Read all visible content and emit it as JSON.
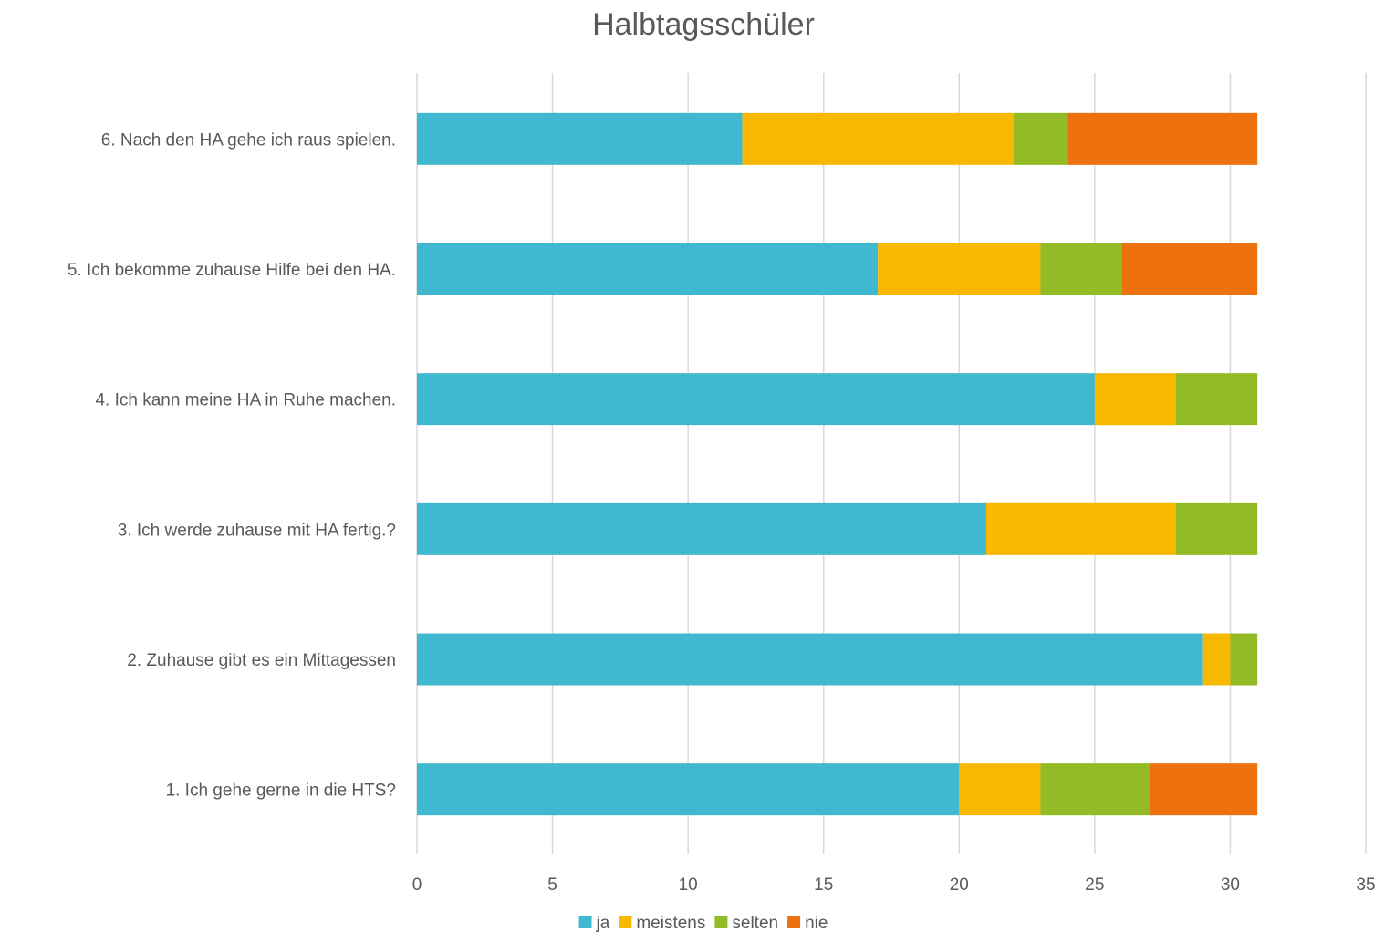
{
  "chart_data": {
    "type": "bar",
    "orientation": "horizontal",
    "stacked": true,
    "title": "Halbtagsschüler",
    "xlabel": "",
    "ylabel": "",
    "xlim": [
      0,
      35
    ],
    "x_ticks": [
      "0",
      "5",
      "10",
      "15",
      "20",
      "25",
      "30",
      "35"
    ],
    "grid": "vertical",
    "legend_position": "bottom",
    "categories": [
      "6. Nach den HA gehe ich raus spielen.",
      "5. Ich bekomme zuhause Hilfe bei den HA.",
      "4. Ich kann meine HA in Ruhe machen.",
      "3. Ich werde zuhause mit HA fertig.?",
      "2. Zuhause gibt es ein Mittagessen",
      "1. Ich gehe gerne in die HTS?"
    ],
    "series": [
      {
        "name": "ja",
        "color": "#40b8d0",
        "values": [
          12,
          17,
          25,
          21,
          29,
          20
        ]
      },
      {
        "name": "meistens",
        "color": "#f8b800",
        "values": [
          10,
          6,
          3,
          7,
          1,
          3
        ]
      },
      {
        "name": "selten",
        "color": "#92bb25",
        "values": [
          2,
          3,
          3,
          3,
          1,
          4
        ]
      },
      {
        "name": "nie",
        "color": "#ed720d",
        "values": [
          7,
          5,
          0,
          0,
          0,
          4
        ]
      }
    ]
  }
}
